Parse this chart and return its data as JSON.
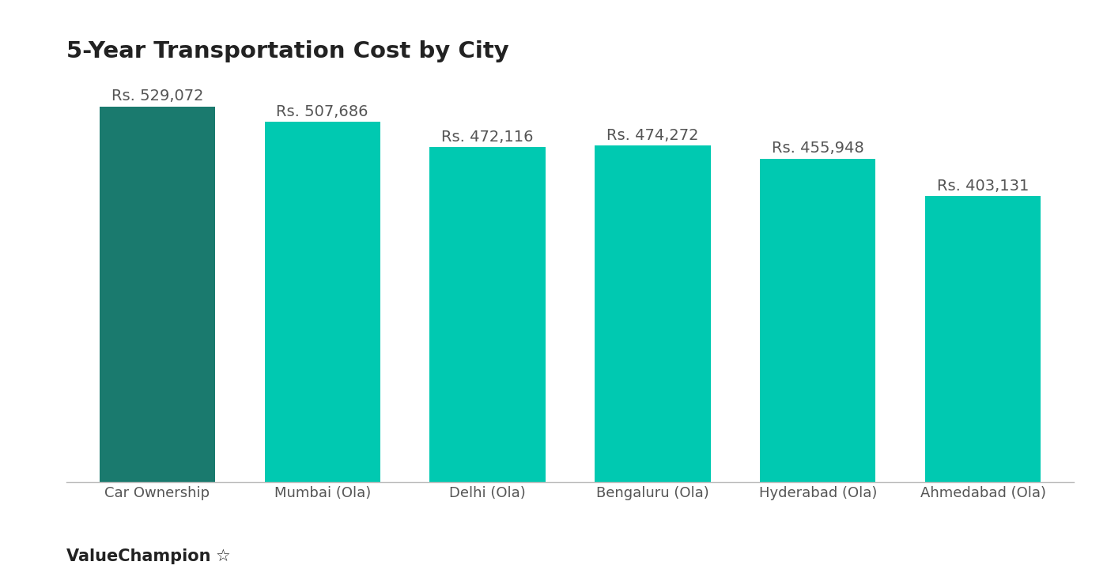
{
  "title": "5-Year Transportation Cost by City",
  "categories": [
    "Car Ownership",
    "Mumbai (Ola)",
    "Delhi (Ola)",
    "Bengaluru (Ola)",
    "Hyderabad (Ola)",
    "Ahmedabad (Ola)"
  ],
  "values": [
    529072,
    507686,
    472116,
    474272,
    455948,
    403131
  ],
  "bar_colors": [
    "#1a7a6e",
    "#00c9b1",
    "#00c9b1",
    "#00c9b1",
    "#00c9b1",
    "#00c9b1"
  ],
  "labels": [
    "Rs. 529,072",
    "Rs. 507,686",
    "Rs. 472,116",
    "Rs. 474,272",
    "Rs. 455,948",
    "Rs. 403,131"
  ],
  "ylim": [
    0,
    580000
  ],
  "background_color": "#ffffff",
  "title_fontsize": 21,
  "label_fontsize": 14,
  "tick_fontsize": 13,
  "label_color": "#555555",
  "title_color": "#222222",
  "watermark": "ValueChampion",
  "bar_width": 0.7
}
